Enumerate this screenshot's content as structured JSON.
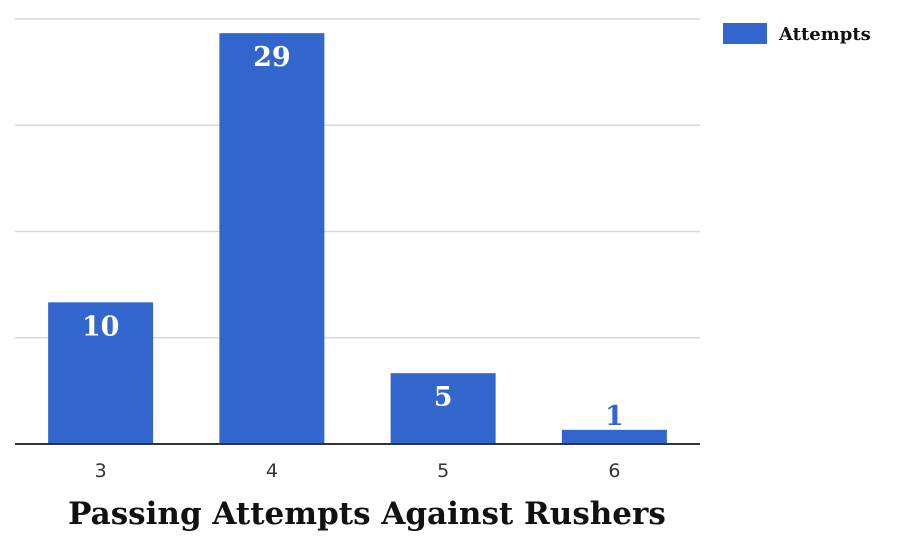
{
  "chart_data": {
    "type": "bar",
    "title": "Passing Attempts Against Rushers",
    "xlabel": "",
    "ylabel": "",
    "categories": [
      "3",
      "4",
      "5",
      "6"
    ],
    "series": [
      {
        "name": "Attempts",
        "values": [
          10,
          29,
          5,
          1
        ],
        "data_labels": [
          "10",
          "29",
          "5",
          "1"
        ]
      }
    ],
    "ylim": [
      0,
      30
    ],
    "grid": true,
    "legend_position": "top-right",
    "colors": {
      "bar": "#3366cc",
      "inside_label": "#ffffff",
      "outside_label": "#3366cc",
      "gridline": "#d9d9d9",
      "baseline": "#333333"
    }
  }
}
